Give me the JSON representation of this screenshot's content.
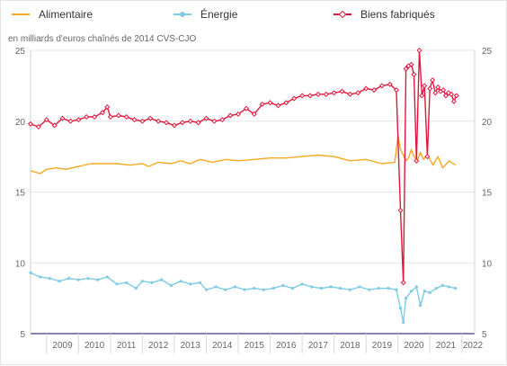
{
  "legend": {
    "items": [
      {
        "label": "Alimentaire",
        "color": "#f7a923",
        "marker": "none"
      },
      {
        "label": "Énergie",
        "color": "#7ecbe6",
        "marker": "circle"
      },
      {
        "label": "Biens fabriqués",
        "color": "#e1163c",
        "marker": "diamond"
      }
    ]
  },
  "chart_data": {
    "type": "line",
    "ylabel": "en milliards d'euros chaînés de 2014 CVS-CJO",
    "ylim": [
      5,
      25
    ],
    "yticks": [
      5,
      10,
      15,
      20,
      25
    ],
    "xlim": [
      2008.5,
      2022.4
    ],
    "xticks": [
      "2009",
      "2010",
      "2011",
      "2012",
      "2013",
      "2014",
      "2015",
      "2016",
      "2017",
      "2018",
      "2019",
      "2020",
      "2021",
      "2022"
    ],
    "grid": true,
    "legend_position": "top",
    "series": [
      {
        "name": "Alimentaire",
        "color": "#f7a923",
        "x": [
          2008.5,
          2008.8,
          2009.0,
          2009.3,
          2009.6,
          2010.0,
          2010.4,
          2010.8,
          2011.2,
          2011.6,
          2012.0,
          2012.2,
          2012.5,
          2012.9,
          2013.2,
          2013.5,
          2013.8,
          2014.2,
          2014.6,
          2015.0,
          2015.5,
          2016.0,
          2016.5,
          2017.0,
          2017.5,
          2018.0,
          2018.5,
          2019.0,
          2019.5,
          2019.9,
          2020.0,
          2020.08,
          2020.17,
          2020.25,
          2020.33,
          2020.42,
          2020.5,
          2020.6,
          2020.7,
          2020.8,
          2020.9,
          2021.0,
          2021.1,
          2021.25,
          2021.4,
          2021.6,
          2021.8
        ],
        "values": [
          16.5,
          16.3,
          16.6,
          16.7,
          16.6,
          16.8,
          17.0,
          17.0,
          17.0,
          16.9,
          17.0,
          16.8,
          17.1,
          17.0,
          17.2,
          17.0,
          17.3,
          17.1,
          17.3,
          17.2,
          17.3,
          17.4,
          17.4,
          17.5,
          17.6,
          17.5,
          17.2,
          17.3,
          17.0,
          17.1,
          19.0,
          18.0,
          17.6,
          17.2,
          17.4,
          18.0,
          17.5,
          17.2,
          17.8,
          17.3,
          17.6,
          17.3,
          16.9,
          17.5,
          16.7,
          17.2,
          16.9
        ]
      },
      {
        "name": "Énergie",
        "color": "#7ecbe6",
        "x": [
          2008.5,
          2008.8,
          2009.1,
          2009.4,
          2009.7,
          2010.0,
          2010.3,
          2010.6,
          2010.9,
          2011.2,
          2011.5,
          2011.8,
          2012.0,
          2012.3,
          2012.6,
          2012.9,
          2013.2,
          2013.5,
          2013.8,
          2014.0,
          2014.3,
          2014.6,
          2014.9,
          2015.2,
          2015.5,
          2015.8,
          2016.1,
          2016.4,
          2016.7,
          2017.0,
          2017.3,
          2017.6,
          2017.9,
          2018.2,
          2018.5,
          2018.8,
          2019.1,
          2019.4,
          2019.7,
          2019.95,
          2020.08,
          2020.17,
          2020.25,
          2020.42,
          2020.58,
          2020.7,
          2020.83,
          2021.0,
          2021.2,
          2021.4,
          2021.6,
          2021.8
        ],
        "values": [
          9.3,
          9.0,
          8.9,
          8.7,
          8.9,
          8.8,
          8.9,
          8.8,
          9.0,
          8.5,
          8.6,
          8.2,
          8.7,
          8.6,
          8.8,
          8.4,
          8.7,
          8.5,
          8.6,
          8.1,
          8.3,
          8.1,
          8.3,
          8.1,
          8.2,
          8.1,
          8.2,
          8.4,
          8.2,
          8.5,
          8.3,
          8.2,
          8.3,
          8.2,
          8.1,
          8.3,
          8.1,
          8.2,
          8.2,
          8.1,
          6.8,
          5.8,
          7.5,
          8.0,
          8.3,
          7.0,
          8.0,
          7.9,
          8.2,
          8.4,
          8.3,
          8.2
        ]
      },
      {
        "name": "Biens fabriqués",
        "color": "#e1163c",
        "x": [
          2008.5,
          2008.75,
          2009.0,
          2009.25,
          2009.5,
          2009.75,
          2010.0,
          2010.25,
          2010.5,
          2010.75,
          2010.9,
          2011.0,
          2011.25,
          2011.5,
          2011.75,
          2012.0,
          2012.25,
          2012.5,
          2012.75,
          2013.0,
          2013.25,
          2013.5,
          2013.75,
          2014.0,
          2014.25,
          2014.5,
          2014.75,
          2015.0,
          2015.25,
          2015.5,
          2015.75,
          2016.0,
          2016.25,
          2016.5,
          2016.75,
          2017.0,
          2017.25,
          2017.5,
          2017.75,
          2018.0,
          2018.25,
          2018.5,
          2018.75,
          2019.0,
          2019.25,
          2019.5,
          2019.75,
          2019.95,
          2020.08,
          2020.17,
          2020.25,
          2020.33,
          2020.42,
          2020.5,
          2020.58,
          2020.67,
          2020.75,
          2020.83,
          2020.92,
          2021.0,
          2021.08,
          2021.17,
          2021.25,
          2021.33,
          2021.42,
          2021.5,
          2021.58,
          2021.67,
          2021.75,
          2021.83
        ],
        "values": [
          19.8,
          19.6,
          20.1,
          19.7,
          20.2,
          20.0,
          20.1,
          20.3,
          20.3,
          20.6,
          21.0,
          20.3,
          20.4,
          20.3,
          20.1,
          20.0,
          20.2,
          20.0,
          19.9,
          19.7,
          19.9,
          20.0,
          19.9,
          20.2,
          20.0,
          20.1,
          20.4,
          20.5,
          20.9,
          20.5,
          21.2,
          21.3,
          21.1,
          21.3,
          21.6,
          21.8,
          21.8,
          21.9,
          21.9,
          22.0,
          22.1,
          21.9,
          22.0,
          22.3,
          22.2,
          22.5,
          22.6,
          22.2,
          13.7,
          8.6,
          23.7,
          23.9,
          24.0,
          23.3,
          17.2,
          25.0,
          21.8,
          22.5,
          17.5,
          22.3,
          22.9,
          22.0,
          22.4,
          22.1,
          22.2,
          21.8,
          22.0,
          21.9,
          21.4,
          21.8
        ]
      }
    ]
  }
}
